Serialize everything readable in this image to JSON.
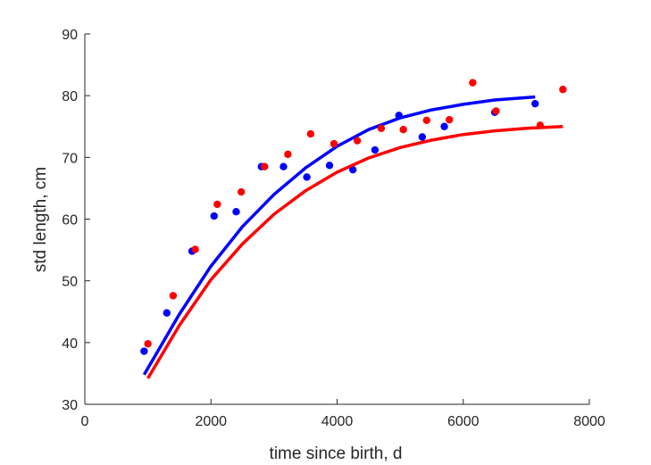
{
  "chart_data": {
    "type": "scatter",
    "title": "",
    "xlabel": "time since birth, d",
    "ylabel": "std length, cm",
    "xlim": [
      0,
      8000
    ],
    "ylim": [
      30,
      90
    ],
    "xticks": [
      0,
      2000,
      4000,
      6000,
      8000
    ],
    "yticks": [
      30,
      40,
      50,
      60,
      70,
      80,
      90
    ],
    "xtick_labels": [
      "0",
      "2000",
      "4000",
      "6000",
      "8000"
    ],
    "ytick_labels": [
      "30",
      "40",
      "50",
      "60",
      "70",
      "80",
      "90"
    ],
    "grid": false,
    "legend": false,
    "series": [
      {
        "color": "#0000ff",
        "points": [
          [
            940,
            38.6
          ],
          [
            1300,
            44.8
          ],
          [
            1700,
            54.8
          ],
          [
            2050,
            60.5
          ],
          [
            2400,
            61.2
          ],
          [
            2800,
            68.5
          ],
          [
            3150,
            68.5
          ],
          [
            3520,
            66.8
          ],
          [
            3880,
            68.7
          ],
          [
            4250,
            68.0
          ],
          [
            4600,
            71.2
          ],
          [
            4980,
            76.8
          ],
          [
            5350,
            73.3
          ],
          [
            5700,
            75.0
          ],
          [
            6500,
            77.3
          ],
          [
            7140,
            78.7
          ]
        ],
        "fit": {
          "type": "von_bertalanffy",
          "x_range": [
            940,
            7140
          ],
          "curve": [
            [
              940,
              34.8
            ],
            [
              1500,
              44.6
            ],
            [
              2000,
              52.4
            ],
            [
              2500,
              58.8
            ],
            [
              3000,
              64.0
            ],
            [
              3500,
              68.3
            ],
            [
              4000,
              71.8
            ],
            [
              4500,
              74.5
            ],
            [
              5000,
              76.4
            ],
            [
              5500,
              77.7
            ],
            [
              6000,
              78.6
            ],
            [
              6500,
              79.3
            ],
            [
              7140,
              79.8
            ]
          ]
        }
      },
      {
        "color": "#ff0000",
        "points": [
          [
            1000,
            39.8
          ],
          [
            1400,
            47.6
          ],
          [
            1750,
            55.1
          ],
          [
            2100,
            62.4
          ],
          [
            2480,
            64.4
          ],
          [
            2850,
            68.5
          ],
          [
            3220,
            70.5
          ],
          [
            3580,
            73.8
          ],
          [
            3950,
            72.2
          ],
          [
            4320,
            72.7
          ],
          [
            4700,
            74.7
          ],
          [
            5050,
            74.5
          ],
          [
            5420,
            76.0
          ],
          [
            5780,
            76.1
          ],
          [
            6150,
            82.1
          ],
          [
            6520,
            77.5
          ],
          [
            7220,
            75.2
          ],
          [
            7580,
            81.0
          ]
        ],
        "fit": {
          "type": "von_bertalanffy",
          "x_range": [
            1000,
            7580
          ],
          "curve": [
            [
              1000,
              34.2
            ],
            [
              1500,
              42.8
            ],
            [
              2000,
              50.2
            ],
            [
              2500,
              56.0
            ],
            [
              3000,
              60.8
            ],
            [
              3500,
              64.6
            ],
            [
              4000,
              67.6
            ],
            [
              4500,
              69.9
            ],
            [
              5000,
              71.6
            ],
            [
              5500,
              72.8
            ],
            [
              6000,
              73.7
            ],
            [
              6500,
              74.3
            ],
            [
              7000,
              74.7
            ],
            [
              7580,
              75.0
            ]
          ]
        }
      }
    ]
  }
}
